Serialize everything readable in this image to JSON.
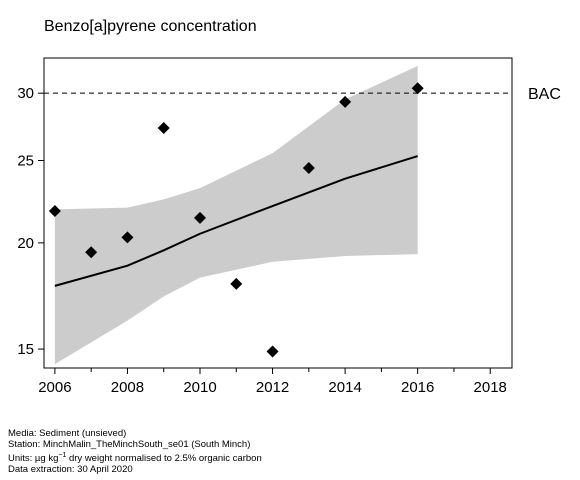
{
  "chart_data": {
    "type": "scatter",
    "title": "Benzo[a]pyrene concentration",
    "x_ticks": [
      2006,
      2008,
      2010,
      2012,
      2014,
      2016,
      2018
    ],
    "y_ticks": [
      15,
      20,
      25,
      30
    ],
    "xlim": [
      2005.7,
      2018.6
    ],
    "ylim": [
      14.25,
      33.0
    ],
    "y_scale": "log",
    "points": [
      {
        "x": 2006,
        "y": 21.8
      },
      {
        "x": 2007,
        "y": 19.5
      },
      {
        "x": 2008,
        "y": 20.3
      },
      {
        "x": 2009,
        "y": 27.3
      },
      {
        "x": 2010,
        "y": 21.4
      },
      {
        "x": 2011,
        "y": 17.9
      },
      {
        "x": 2012,
        "y": 14.9
      },
      {
        "x": 2013,
        "y": 24.5
      },
      {
        "x": 2014,
        "y": 29.3
      },
      {
        "x": 2015,
        "y": null
      },
      {
        "x": 2016,
        "y": 30.4
      }
    ],
    "trend": [
      {
        "x": 2006,
        "y": 17.8
      },
      {
        "x": 2008,
        "y": 18.8
      },
      {
        "x": 2009,
        "y": 19.6
      },
      {
        "x": 2010,
        "y": 20.5
      },
      {
        "x": 2012,
        "y": 22.1
      },
      {
        "x": 2014,
        "y": 23.8
      },
      {
        "x": 2016,
        "y": 25.3
      }
    ],
    "ci_upper": [
      {
        "x": 2006,
        "y": 21.9
      },
      {
        "x": 2008,
        "y": 22.0
      },
      {
        "x": 2009,
        "y": 22.5
      },
      {
        "x": 2010,
        "y": 23.2
      },
      {
        "x": 2012,
        "y": 25.5
      },
      {
        "x": 2014,
        "y": 29.5
      },
      {
        "x": 2016,
        "y": 32.3
      }
    ],
    "ci_lower": [
      {
        "x": 2006,
        "y": 14.4
      },
      {
        "x": 2008,
        "y": 16.2
      },
      {
        "x": 2009,
        "y": 17.3
      },
      {
        "x": 2010,
        "y": 18.2
      },
      {
        "x": 2012,
        "y": 19.0
      },
      {
        "x": 2014,
        "y": 19.3
      },
      {
        "x": 2016,
        "y": 19.4
      }
    ],
    "reference_line": {
      "label": "BAC",
      "y": 30
    },
    "grid": false,
    "colors": {
      "points": "#000000",
      "band": "#cccccc",
      "trend": "#000000"
    }
  },
  "metadata": {
    "media": "Media: Sediment (unsieved)",
    "station": "Station: MinchMalin_TheMinchSouth_se01 (South Minch)",
    "units_prefix": "Units:  µg kg",
    "units_sup": "−1",
    "units_suffix": " dry weight normalised to 2.5% organic carbon",
    "extraction": "Data extraction: 30 April 2020"
  }
}
